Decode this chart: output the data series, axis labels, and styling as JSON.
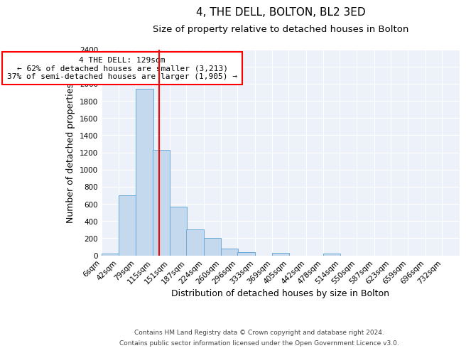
{
  "title": "4, THE DELL, BOLTON, BL2 3ED",
  "subtitle": "Size of property relative to detached houses in Bolton",
  "xlabel": "Distribution of detached houses by size in Bolton",
  "ylabel": "Number of detached properties",
  "footer_lines": [
    "Contains HM Land Registry data © Crown copyright and database right 2024.",
    "Contains public sector information licensed under the Open Government Licence v3.0."
  ],
  "bin_labels": [
    "6sqm",
    "42sqm",
    "79sqm",
    "115sqm",
    "151sqm",
    "187sqm",
    "224sqm",
    "260sqm",
    "296sqm",
    "333sqm",
    "369sqm",
    "405sqm",
    "442sqm",
    "478sqm",
    "514sqm",
    "550sqm",
    "587sqm",
    "623sqm",
    "659sqm",
    "696sqm",
    "732sqm"
  ],
  "bar_values": [
    20,
    700,
    1940,
    1230,
    570,
    300,
    200,
    80,
    35,
    0,
    25,
    0,
    0,
    20,
    0,
    0,
    0,
    0,
    0,
    0
  ],
  "bar_color": "#c5d9ee",
  "bar_edge_color": "#6aaad4",
  "property_line_x": 129,
  "property_line_color": "red",
  "annotation_text": "4 THE DELL: 129sqm\n← 62% of detached houses are smaller (3,213)\n37% of semi-detached houses are larger (1,905) →",
  "annotation_box_edge_color": "red",
  "ylim": [
    0,
    2400
  ],
  "yticks": [
    0,
    200,
    400,
    600,
    800,
    1000,
    1200,
    1400,
    1600,
    1800,
    2000,
    2200,
    2400
  ],
  "bin_edges": [
    6,
    42,
    79,
    115,
    151,
    187,
    224,
    260,
    296,
    333,
    369,
    405,
    442,
    478,
    514,
    550,
    587,
    623,
    659,
    696,
    732
  ],
  "bin_width": 37,
  "title_fontsize": 11,
  "subtitle_fontsize": 9.5,
  "axis_label_fontsize": 9,
  "tick_fontsize": 7.5,
  "annotation_fontsize": 8,
  "footer_fontsize": 6.5
}
